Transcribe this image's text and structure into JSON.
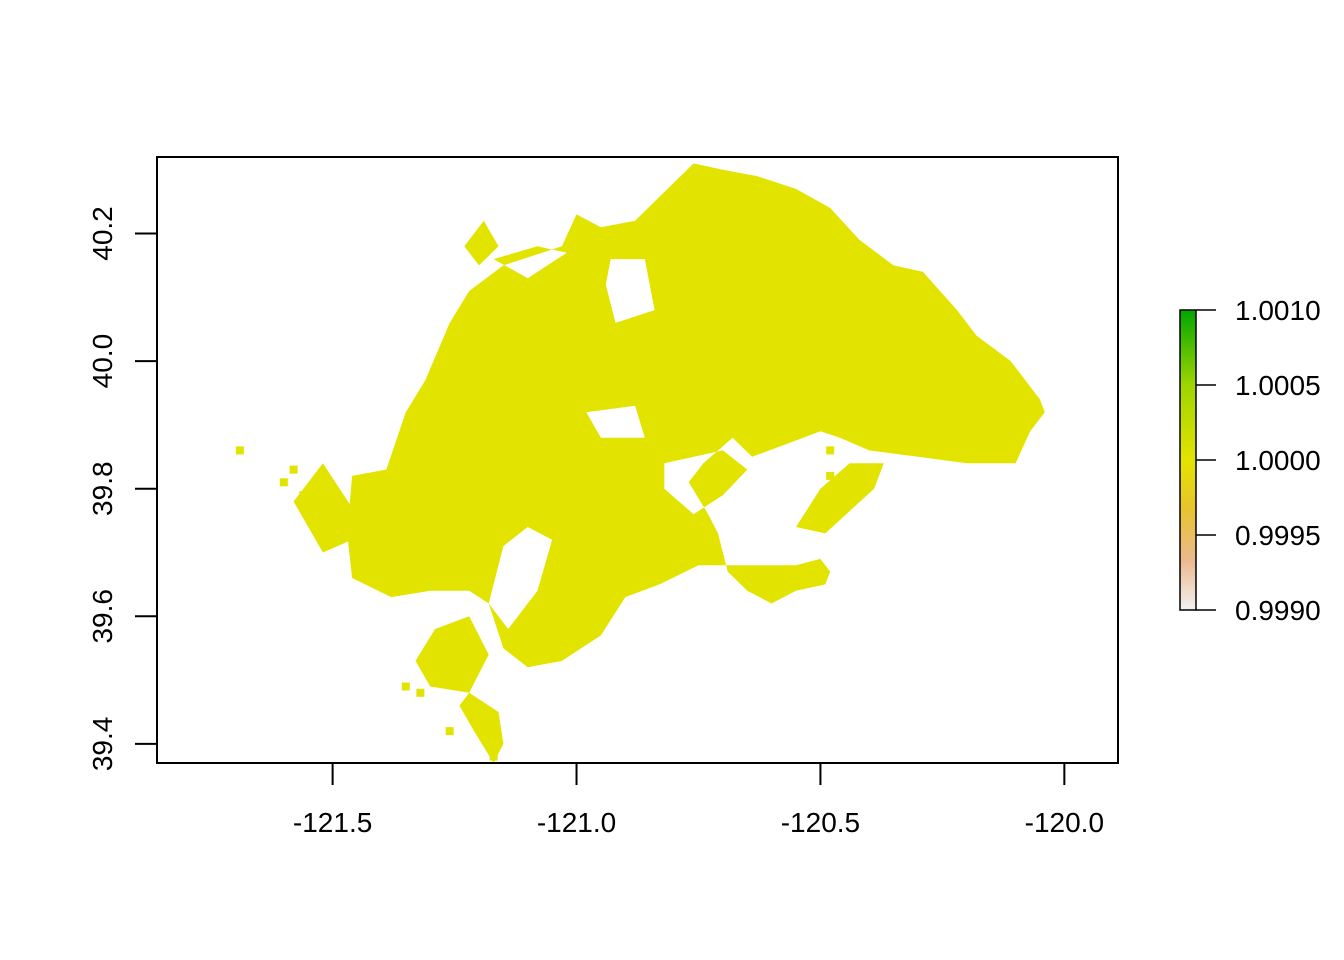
{
  "chart_data": {
    "type": "raster-map",
    "title": "",
    "xlabel": "",
    "ylabel": "",
    "xlim": [
      -121.86,
      -119.89
    ],
    "ylim": [
      39.37,
      40.32
    ],
    "x_ticks": [
      {
        "value": -121.5,
        "label": "-121.5"
      },
      {
        "value": -121.0,
        "label": "-121.0"
      },
      {
        "value": -120.5,
        "label": "-120.5"
      },
      {
        "value": -120.0,
        "label": "-120.0"
      }
    ],
    "y_ticks": [
      {
        "value": 39.4,
        "label": "39.4"
      },
      {
        "value": 39.6,
        "label": "39.6"
      },
      {
        "value": 39.8,
        "label": "39.8"
      },
      {
        "value": 40.0,
        "label": "40.0"
      },
      {
        "value": 40.2,
        "label": "40.2"
      }
    ],
    "raster_value": 1.0,
    "raster_color": "#e3e300",
    "region": {
      "main_outline": [
        [
          -121.46,
          39.82
        ],
        [
          -121.39,
          39.83
        ],
        [
          -121.35,
          39.92
        ],
        [
          -121.31,
          39.97
        ],
        [
          -121.26,
          40.06
        ],
        [
          -121.22,
          40.11
        ],
        [
          -121.15,
          40.15
        ],
        [
          -121.03,
          40.18
        ],
        [
          -121.0,
          40.23
        ],
        [
          -120.95,
          40.21
        ],
        [
          -120.88,
          40.22
        ],
        [
          -120.8,
          40.28
        ],
        [
          -120.76,
          40.31
        ],
        [
          -120.7,
          40.3
        ],
        [
          -120.63,
          40.29
        ],
        [
          -120.55,
          40.27
        ],
        [
          -120.48,
          40.24
        ],
        [
          -120.42,
          40.19
        ],
        [
          -120.35,
          40.15
        ],
        [
          -120.29,
          40.14
        ],
        [
          -120.22,
          40.08
        ],
        [
          -120.18,
          40.04
        ],
        [
          -120.11,
          40.0
        ],
        [
          -120.05,
          39.94
        ],
        [
          -120.04,
          39.92
        ],
        [
          -120.07,
          39.89
        ],
        [
          -120.1,
          39.84
        ],
        [
          -120.2,
          39.84
        ],
        [
          -120.3,
          39.85
        ],
        [
          -120.4,
          39.86
        ],
        [
          -120.46,
          39.88
        ],
        [
          -120.5,
          39.89
        ],
        [
          -120.57,
          39.87
        ],
        [
          -120.64,
          39.85
        ],
        [
          -120.68,
          39.88
        ],
        [
          -120.74,
          39.84
        ],
        [
          -120.77,
          39.81
        ],
        [
          -120.73,
          39.76
        ],
        [
          -120.71,
          39.73
        ],
        [
          -120.69,
          39.67
        ],
        [
          -120.65,
          39.64
        ],
        [
          -120.6,
          39.62
        ],
        [
          -120.55,
          39.64
        ],
        [
          -120.49,
          39.65
        ],
        [
          -120.48,
          39.67
        ],
        [
          -120.5,
          39.69
        ],
        [
          -120.55,
          39.68
        ],
        [
          -120.62,
          39.68
        ],
        [
          -120.75,
          39.68
        ],
        [
          -120.83,
          39.65
        ],
        [
          -120.9,
          39.63
        ],
        [
          -120.95,
          39.57
        ],
        [
          -121.03,
          39.53
        ],
        [
          -121.1,
          39.52
        ],
        [
          -121.15,
          39.55
        ],
        [
          -121.18,
          39.62
        ],
        [
          -121.22,
          39.64
        ],
        [
          -121.3,
          39.64
        ],
        [
          -121.38,
          39.63
        ],
        [
          -121.46,
          39.66
        ],
        [
          -121.47,
          39.73
        ],
        [
          -121.46,
          39.82
        ]
      ],
      "holes": [
        [
          [
            -120.93,
            40.16
          ],
          [
            -120.86,
            40.16
          ],
          [
            -120.84,
            40.08
          ],
          [
            -120.92,
            40.06
          ],
          [
            -120.94,
            40.12
          ],
          [
            -120.93,
            40.16
          ]
        ],
        [
          [
            -120.98,
            39.92
          ],
          [
            -120.88,
            39.93
          ],
          [
            -120.86,
            39.88
          ],
          [
            -120.95,
            39.88
          ],
          [
            -120.98,
            39.92
          ]
        ],
        [
          [
            -120.82,
            39.84
          ],
          [
            -120.7,
            39.86
          ],
          [
            -120.65,
            39.83
          ],
          [
            -120.7,
            39.79
          ],
          [
            -120.76,
            39.76
          ],
          [
            -120.82,
            39.8
          ],
          [
            -120.82,
            39.84
          ]
        ],
        [
          [
            -121.18,
            39.62
          ],
          [
            -121.15,
            39.71
          ],
          [
            -121.1,
            39.74
          ],
          [
            -121.05,
            39.72
          ],
          [
            -121.08,
            39.64
          ],
          [
            -121.14,
            39.58
          ],
          [
            -121.18,
            39.62
          ]
        ],
        [
          [
            -121.17,
            40.16
          ],
          [
            -121.08,
            40.18
          ],
          [
            -121.02,
            40.17
          ],
          [
            -121.1,
            40.13
          ],
          [
            -121.17,
            40.16
          ]
        ]
      ],
      "fragments": [
        [
          [
            -121.46,
            39.77
          ],
          [
            -121.52,
            39.84
          ],
          [
            -121.58,
            39.78
          ],
          [
            -121.52,
            39.7
          ],
          [
            -121.46,
            39.72
          ],
          [
            -121.46,
            39.77
          ]
        ],
        [
          [
            -121.29,
            39.58
          ],
          [
            -121.22,
            39.6
          ],
          [
            -121.18,
            39.54
          ],
          [
            -121.22,
            39.48
          ],
          [
            -121.3,
            39.49
          ],
          [
            -121.33,
            39.53
          ],
          [
            -121.29,
            39.58
          ]
        ],
        [
          [
            -121.22,
            39.48
          ],
          [
            -121.16,
            39.45
          ],
          [
            -121.15,
            39.4
          ],
          [
            -121.17,
            39.37
          ],
          [
            -121.21,
            39.42
          ],
          [
            -121.24,
            39.46
          ],
          [
            -121.22,
            39.48
          ]
        ],
        [
          [
            -120.55,
            39.74
          ],
          [
            -120.49,
            39.73
          ],
          [
            -120.39,
            39.8
          ],
          [
            -120.37,
            39.84
          ],
          [
            -120.44,
            39.84
          ],
          [
            -120.5,
            39.8
          ],
          [
            -120.55,
            39.74
          ]
        ],
        [
          [
            -121.2,
            40.15
          ],
          [
            -121.16,
            40.18
          ],
          [
            -121.19,
            40.22
          ],
          [
            -121.23,
            40.18
          ],
          [
            -121.2,
            40.15
          ]
        ]
      ],
      "specks": [
        [
          -121.69,
          39.86
        ],
        [
          -121.58,
          39.83
        ],
        [
          -121.6,
          39.81
        ],
        [
          -121.56,
          39.79
        ],
        [
          -121.49,
          39.74
        ],
        [
          -121.35,
          39.49
        ],
        [
          -121.32,
          39.48
        ],
        [
          -121.26,
          39.42
        ],
        [
          -121.17,
          39.38
        ],
        [
          -120.48,
          39.82
        ],
        [
          -120.48,
          39.86
        ]
      ]
    },
    "legend": {
      "position": "right",
      "min": 0.999,
      "max": 1.001,
      "ticks": [
        {
          "value": 1.001,
          "label": "1.0010"
        },
        {
          "value": 1.0005,
          "label": "1.0005"
        },
        {
          "value": 1.0,
          "label": "1.0000"
        },
        {
          "value": 0.9995,
          "label": "0.9995"
        },
        {
          "value": 0.999,
          "label": "0.9990"
        }
      ],
      "color_stops": [
        {
          "value": 0.999,
          "color": "#f2f2f2"
        },
        {
          "value": 0.99933,
          "color": "#ebb98f"
        },
        {
          "value": 0.99967,
          "color": "#e8c32e"
        },
        {
          "value": 1.0,
          "color": "#e3e300"
        },
        {
          "value": 1.0005,
          "color": "#9ed500"
        },
        {
          "value": 1.001,
          "color": "#00a600"
        }
      ]
    }
  }
}
